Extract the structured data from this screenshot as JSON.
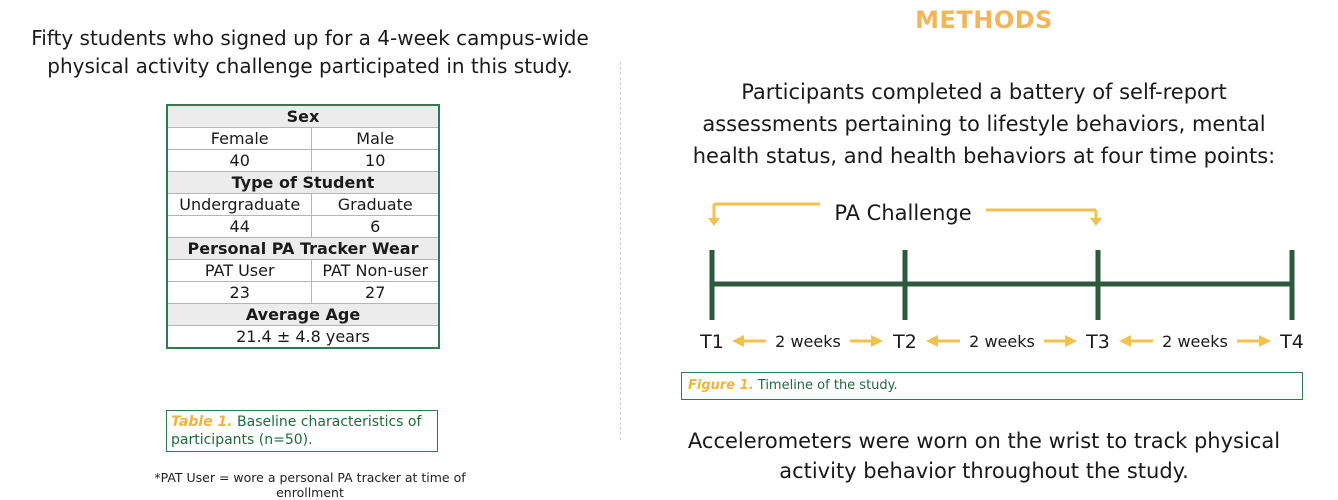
{
  "left": {
    "intro_line1": "Fifty students who signed up for a 4-week campus-wide",
    "intro_line2": "physical activity challenge participated in this study.",
    "table": {
      "sex_header": "Sex",
      "female_label": "Female",
      "male_label": "Male",
      "female_value": "40",
      "male_value": "10",
      "student_header": "Type of Student",
      "undergrad_label": "Undergraduate",
      "graduate_label": "Graduate",
      "undergrad_value": "44",
      "graduate_value": "6",
      "tracker_header": "Personal PA Tracker Wear",
      "pat_user_label": "PAT User",
      "pat_nonuser_label": "PAT Non-user",
      "pat_user_value": "23",
      "pat_nonuser_value": "27",
      "age_header": "Average Age",
      "age_value": "21.4 ± 4.8 years"
    },
    "table_caption_label": "Table 1.",
    "table_caption_text": " Baseline characteristics of participants (n=50).",
    "footnote": "*PAT User = wore a personal PA tracker at time of enrollment"
  },
  "right": {
    "heading": "METHODS",
    "desc_line1": "Participants completed a battery of self-report",
    "desc_line2": "assessments pertaining to lifestyle behaviors, mental",
    "desc_line3": "health status, and health behaviors at four time points:",
    "timeline": {
      "challenge_label": "PA Challenge",
      "points": [
        "T1",
        "T2",
        "T3",
        "T4"
      ],
      "interval_label": "2 weeks",
      "line_color": "#2d5a3d",
      "arrow_color": "#f2c14e"
    },
    "figure_caption_label": "Figure 1.",
    "figure_caption_text": " Timeline of the study.",
    "accel_line1": "Accelerometers were worn on the wrist to track physical",
    "accel_line2": "activity behavior throughout the study."
  }
}
